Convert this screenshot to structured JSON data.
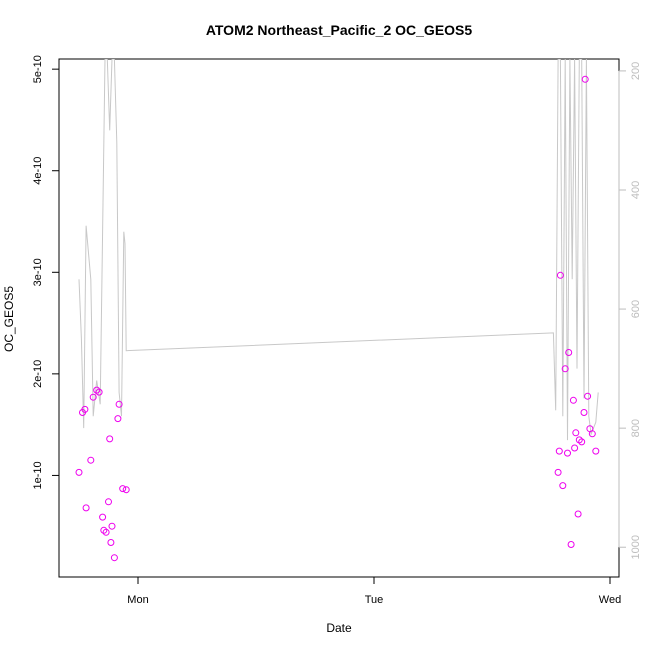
{
  "chart_data": {
    "type": "scatter",
    "title": "ATOM2 Northeast_Pacific_2 OC_GEOS5",
    "xlabel": "Date",
    "ylabel": "OC_GEOS5",
    "x_ticks": [
      "Mon",
      "Tue",
      "Wed"
    ],
    "ylim": [
      0,
      5.1e-10
    ],
    "y_ticks": [
      {
        "value": 1e-10,
        "label": "1e-10"
      },
      {
        "value": 2e-10,
        "label": "2e-10"
      },
      {
        "value": 3e-10,
        "label": "3e-10"
      },
      {
        "value": 4e-10,
        "label": "4e-10"
      },
      {
        "value": 5e-10,
        "label": "5e-10"
      }
    ],
    "y2lim": [
      1050,
      180
    ],
    "y2_ticks": [
      200,
      400,
      600,
      800,
      1000
    ],
    "point_color": "#ee00ee",
    "line_color": "#c8c8c8",
    "grid": false,
    "series": [
      {
        "type": "scatter",
        "x": [
          -0.25,
          -0.235,
          -0.225,
          -0.22,
          -0.2,
          -0.19,
          -0.175,
          -0.165,
          -0.15,
          -0.145,
          -0.135,
          -0.125,
          -0.12,
          -0.115,
          -0.11,
          -0.1,
          -0.085,
          -0.08,
          -0.065,
          -0.05,
          1.78,
          1.785,
          1.79,
          1.8,
          1.81,
          1.82,
          1.825,
          1.835,
          1.845,
          1.85,
          1.855,
          1.865,
          1.87,
          1.88,
          1.89,
          1.895,
          1.905,
          1.915,
          1.925,
          1.94
        ],
        "y": [
          1.03e-10,
          1.62e-10,
          1.65e-10,
          6.8e-11,
          1.15e-10,
          1.77e-10,
          1.84e-10,
          1.82e-10,
          5.9e-11,
          4.6e-11,
          4.4e-11,
          7.4e-11,
          1.36e-10,
          3.4e-11,
          5e-11,
          1.9e-11,
          1.56e-10,
          1.7e-10,
          8.7e-11,
          8.6e-11,
          1.03e-10,
          1.24e-10,
          2.97e-10,
          9e-11,
          2.05e-10,
          1.22e-10,
          2.21e-10,
          3.2e-11,
          1.74e-10,
          1.27e-10,
          1.42e-10,
          6.2e-11,
          1.35e-10,
          1.33e-10,
          1.62e-10,
          4.9e-10,
          1.78e-10,
          1.46e-10,
          1.41e-10,
          1.24e-10
        ]
      },
      {
        "type": "line",
        "axis": "right",
        "x": [
          -0.25,
          -0.24,
          -0.23,
          -0.22,
          -0.2,
          -0.19,
          -0.175,
          -0.16,
          -0.14,
          -0.13,
          -0.12,
          -0.11,
          -0.1,
          -0.09,
          -0.08,
          -0.07,
          -0.06,
          -0.055,
          -0.05,
          1.76,
          1.77,
          1.78,
          1.79,
          1.8,
          1.81,
          1.82,
          1.83,
          1.84,
          1.85,
          1.86,
          1.87,
          1.88,
          1.89,
          1.9,
          1.91,
          1.92,
          1.93,
          1.94,
          1.95
        ],
        "y": [
          550,
          650,
          800,
          460,
          550,
          780,
          720,
          760,
          180,
          180,
          300,
          180,
          180,
          320,
          740,
          780,
          470,
          490,
          670,
          640,
          770,
          180,
          180,
          780,
          180,
          820,
          180,
          550,
          180,
          700,
          180,
          180,
          750,
          180,
          780,
          810,
          800,
          790,
          740
        ]
      }
    ]
  }
}
